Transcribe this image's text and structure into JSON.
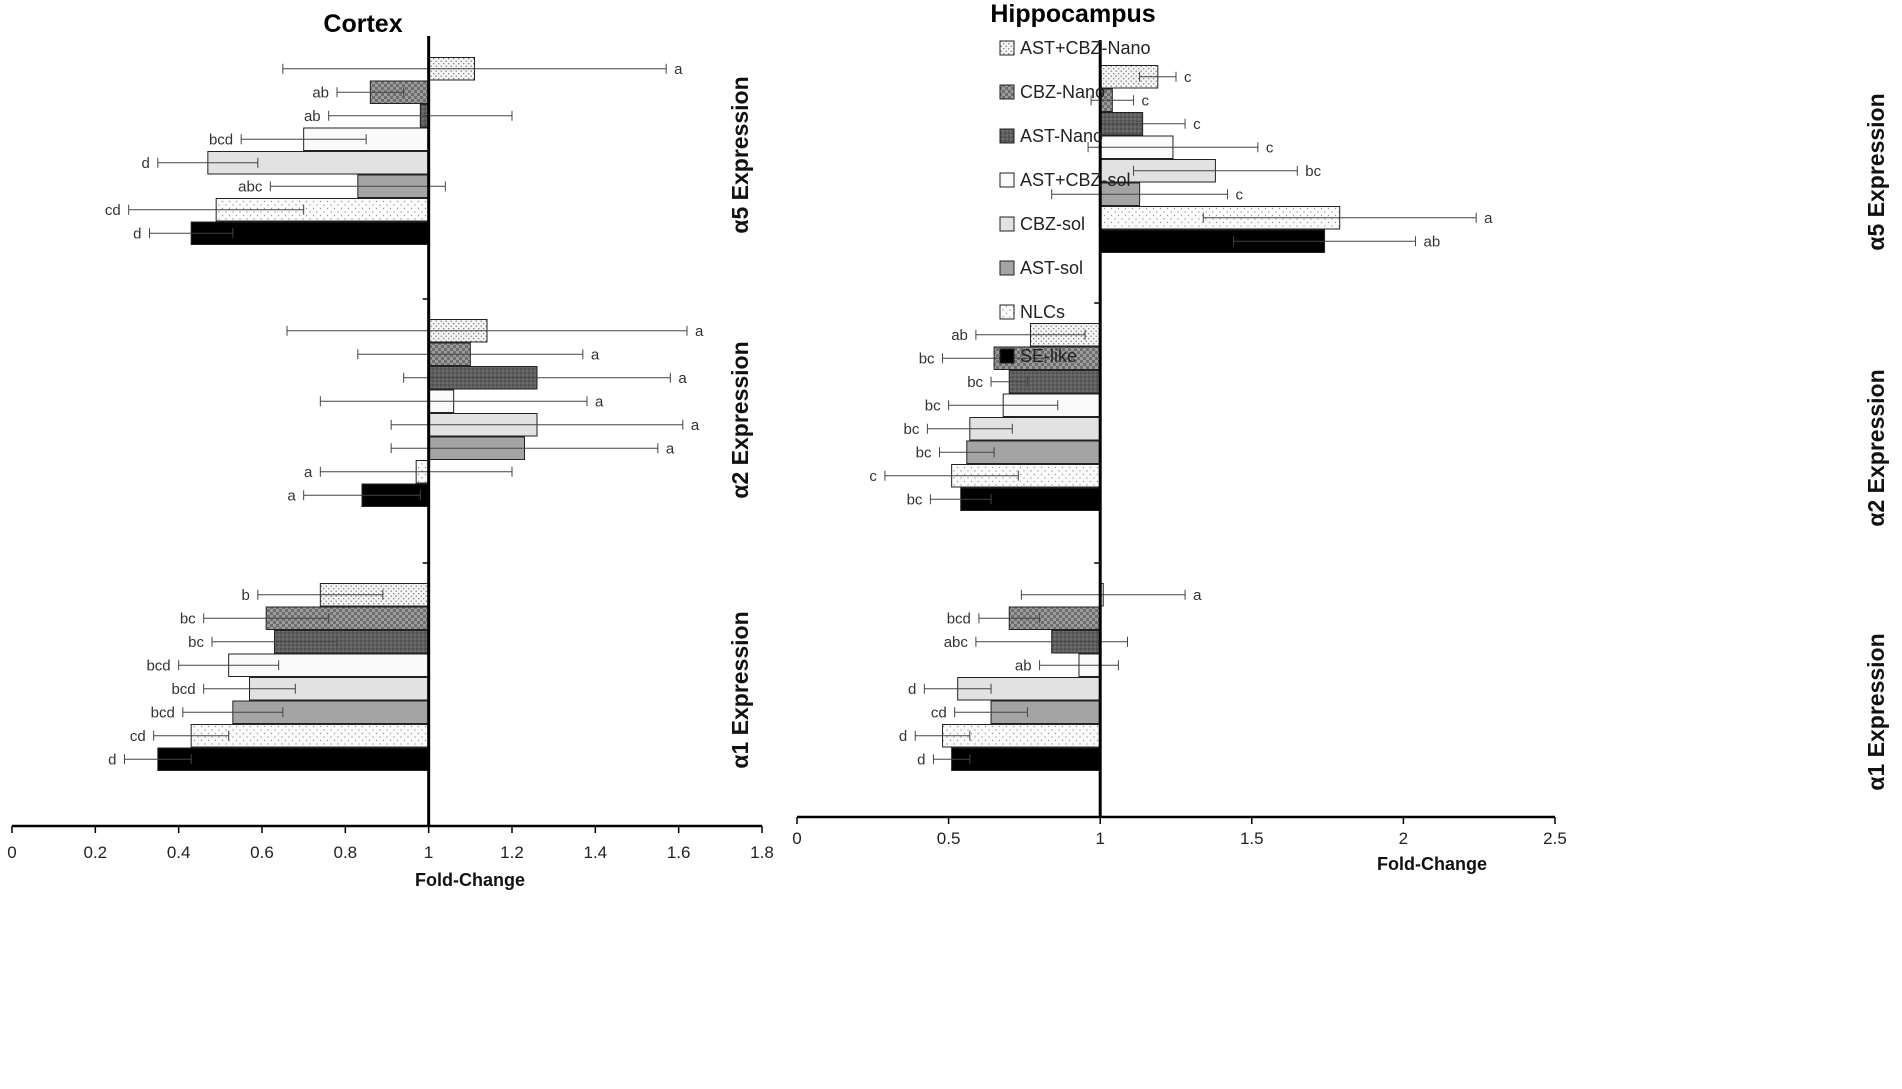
{
  "legend": [
    "AST+CBZ-Nano",
    "CBZ-Nano",
    "AST-Nano",
    "AST+CBZ-sol",
    "CBZ-sol",
    "AST-sol",
    "NLCs",
    "SE-like"
  ],
  "series_colors": {
    "AST+CBZ-Nano": "#eeeeee",
    "CBZ-Nano": "#a8a8a8",
    "AST-Nano": "#666666",
    "AST+CBZ-sol": "#fafafa",
    "CBZ-sol": "#e2e2e2",
    "AST-sol": "#a4a4a4",
    "NLCs": "#e8e8e8",
    "SE-like": "#000000"
  },
  "chart_data": [
    {
      "type": "bar",
      "orientation": "horizontal",
      "title": "Cortex",
      "xlabel": "Fold-Change",
      "xlim": [
        0,
        1.8
      ],
      "xticks": [
        "0",
        "0.2",
        "0.4",
        "0.6",
        "0.8",
        "1",
        "1.2",
        "1.4",
        "1.6",
        "1.8"
      ],
      "baseline": 1,
      "groups": [
        {
          "label": "α5  Expression",
          "values": [
            1.11,
            0.86,
            0.98,
            0.7,
            0.47,
            0.83,
            0.49,
            0.43
          ],
          "errors": [
            0.46,
            0.08,
            0.22,
            0.15,
            0.12,
            0.21,
            0.21,
            0.1
          ],
          "letters": [
            "a",
            "ab",
            "ab",
            "bcd",
            "d",
            "abc",
            "cd",
            "d"
          ]
        },
        {
          "label": "α2  Expression",
          "values": [
            1.14,
            1.1,
            1.26,
            1.06,
            1.26,
            1.23,
            0.97,
            0.84
          ],
          "errors": [
            0.48,
            0.27,
            0.32,
            0.32,
            0.35,
            0.32,
            0.23,
            0.14
          ],
          "letters": [
            "a",
            "a",
            "a",
            "a",
            "a",
            "a",
            "a",
            "a"
          ]
        },
        {
          "label": "α1  Expression",
          "values": [
            0.74,
            0.61,
            0.63,
            0.52,
            0.57,
            0.53,
            0.43,
            0.35
          ],
          "errors": [
            0.15,
            0.15,
            0.15,
            0.12,
            0.11,
            0.12,
            0.09,
            0.08
          ],
          "letters": [
            "b",
            "bc",
            "bc",
            "bcd",
            "bcd",
            "bcd",
            "cd",
            "d"
          ]
        }
      ]
    },
    {
      "type": "bar",
      "orientation": "horizontal",
      "title": "Hippocampus",
      "xlabel": "Fold-Change",
      "xlim": [
        0,
        2.5
      ],
      "xticks": [
        "0",
        "0.5",
        "1",
        "1.5",
        "2",
        "2.5"
      ],
      "baseline": 1,
      "groups": [
        {
          "label": "α5  Expression",
          "values": [
            1.19,
            1.04,
            1.14,
            1.24,
            1.38,
            1.13,
            1.79,
            1.74
          ],
          "errors": [
            0.06,
            0.07,
            0.14,
            0.28,
            0.27,
            0.29,
            0.45,
            0.3
          ],
          "letters": [
            "c",
            "c",
            "c",
            "c",
            "bc",
            "c",
            "a",
            "ab"
          ]
        },
        {
          "label": "α2  Expression",
          "values": [
            0.77,
            0.65,
            0.7,
            0.68,
            0.57,
            0.56,
            0.51,
            0.54
          ],
          "errors": [
            0.18,
            0.17,
            0.06,
            0.18,
            0.14,
            0.09,
            0.22,
            0.1
          ],
          "letters": [
            "ab",
            "bc",
            "bc",
            "bc",
            "bc",
            "bc",
            "c",
            "bc"
          ]
        },
        {
          "label": "α1  Expression",
          "values": [
            1.01,
            0.7,
            0.84,
            0.93,
            0.53,
            0.64,
            0.48,
            0.51
          ],
          "errors": [
            0.27,
            0.1,
            0.25,
            0.13,
            0.11,
            0.12,
            0.09,
            0.06
          ],
          "letters": [
            "a",
            "bcd",
            "abc",
            "ab",
            "d",
            "cd",
            "d",
            "d"
          ]
        }
      ]
    }
  ]
}
